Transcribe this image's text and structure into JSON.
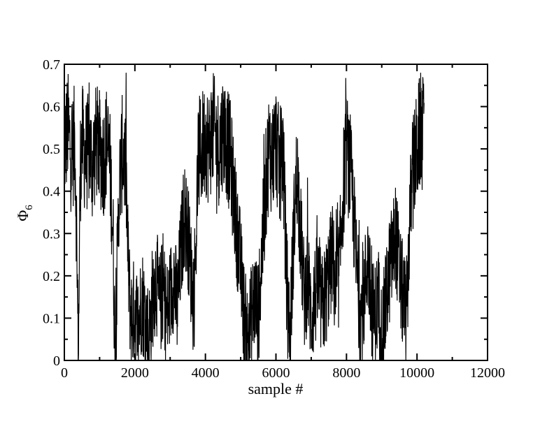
{
  "chart_data": {
    "type": "line",
    "title": "",
    "xlabel": "sample #",
    "ylabel_main": "Φ",
    "ylabel_sub": "6",
    "xlim": [
      0,
      12000
    ],
    "ylim": [
      0,
      0.7
    ],
    "x_ticks": [
      0,
      2000,
      4000,
      6000,
      8000,
      10000,
      12000
    ],
    "x_tick_labels": [
      "0",
      "2000",
      "4000",
      "6000",
      "8000",
      "10000",
      "12000"
    ],
    "y_ticks": [
      0,
      0.1,
      0.2,
      0.3,
      0.4,
      0.5,
      0.6,
      0.7
    ],
    "y_tick_labels": [
      "0",
      "0.1",
      "0.2",
      "0.3",
      "0.4",
      "0.5",
      "0.6",
      "0.7"
    ],
    "grid": false,
    "legend": "none",
    "line_color": "#000000",
    "series": [
      {
        "x": [
          0,
          100,
          200,
          300,
          350,
          380,
          400,
          420,
          450,
          500,
          600,
          700,
          800,
          900,
          1000,
          1100,
          1200,
          1300,
          1380,
          1420,
          1450,
          1480,
          1550,
          1650,
          1750,
          1800,
          1850,
          1900,
          2000,
          2100,
          2200,
          2300,
          2400,
          2500,
          2600,
          2700,
          2800,
          2900,
          3000,
          3100,
          3200,
          3300,
          3400,
          3500,
          3600,
          3700,
          3750,
          3800,
          3900,
          4000,
          4100,
          4200,
          4300,
          4400,
          4500,
          4600,
          4700,
          4800,
          4900,
          5000,
          5100,
          5200,
          5300,
          5400,
          5500,
          5600,
          5700,
          5800,
          5900,
          6000,
          6100,
          6200,
          6300,
          6400,
          6500,
          6600,
          6700,
          6800,
          6900,
          7000,
          7100,
          7200,
          7300,
          7400,
          7500,
          7600,
          7700,
          7800,
          7900,
          8000,
          8100,
          8200,
          8300,
          8400,
          8500,
          8600,
          8700,
          8800,
          8900,
          9000,
          9100,
          9200,
          9300,
          9400,
          9500,
          9600,
          9700,
          9800,
          9900,
          10000,
          10100,
          10200
        ],
        "values": [
          0.5,
          0.55,
          0.48,
          0.52,
          0.3,
          0.1,
          0.01,
          0.2,
          0.45,
          0.52,
          0.48,
          0.5,
          0.46,
          0.52,
          0.5,
          0.47,
          0.52,
          0.45,
          0.3,
          0.1,
          0.01,
          0.15,
          0.4,
          0.5,
          0.45,
          0.25,
          0.15,
          0.1,
          0.12,
          0.08,
          0.15,
          0.1,
          0.05,
          0.15,
          0.2,
          0.12,
          0.18,
          0.1,
          0.15,
          0.2,
          0.12,
          0.25,
          0.35,
          0.3,
          0.2,
          0.15,
          0.35,
          0.48,
          0.5,
          0.53,
          0.5,
          0.55,
          0.52,
          0.5,
          0.55,
          0.52,
          0.48,
          0.4,
          0.3,
          0.22,
          0.1,
          0.05,
          0.1,
          0.15,
          0.1,
          0.25,
          0.4,
          0.5,
          0.48,
          0.52,
          0.45,
          0.5,
          0.2,
          0.05,
          0.3,
          0.45,
          0.3,
          0.15,
          0.2,
          0.1,
          0.15,
          0.18,
          0.12,
          0.15,
          0.2,
          0.25,
          0.15,
          0.22,
          0.4,
          0.5,
          0.45,
          0.35,
          0.2,
          0.1,
          0.15,
          0.25,
          0.12,
          0.1,
          0.15,
          0.05,
          0.12,
          0.2,
          0.25,
          0.3,
          0.2,
          0.15,
          0.1,
          0.35,
          0.45,
          0.5,
          0.55,
          0.52
        ]
      }
    ]
  }
}
